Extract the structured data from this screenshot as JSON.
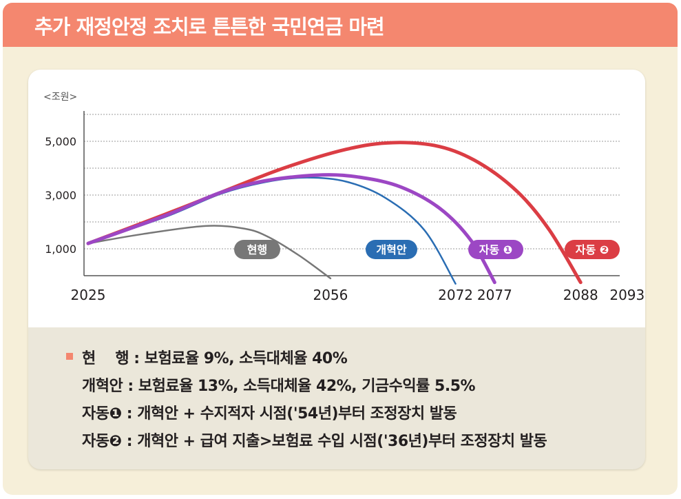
{
  "title": "추가 재정안정 조치로 튼튼한 국민연금 마련",
  "chart_data": {
    "type": "line",
    "unit_label": "<조원>",
    "x_suffix": "년",
    "xlim": [
      2025,
      2093
    ],
    "ylim": [
      0,
      6000
    ],
    "grid": true,
    "y_ticks": [
      1000,
      3000,
      5000
    ],
    "y_tick_labels": [
      "1,000",
      "3,000",
      "5,000"
    ],
    "x_ticks": [
      2025,
      2056,
      2072,
      2077,
      2088,
      2093
    ],
    "x_tick_labels": [
      "2025",
      "2056",
      "2072",
      "2077",
      "2088",
      "2093년"
    ],
    "series": [
      {
        "name": "현행",
        "color": "#777777",
        "points": [
          [
            2025,
            1200
          ],
          [
            2032,
            1550
          ],
          [
            2040,
            1850
          ],
          [
            2045,
            1750
          ],
          [
            2048,
            1450
          ],
          [
            2052,
            750
          ],
          [
            2056,
            -100
          ]
        ]
      },
      {
        "name": "개혁안",
        "color": "#2a6db3",
        "points": [
          [
            2025,
            1200
          ],
          [
            2035,
            2200
          ],
          [
            2042,
            3050
          ],
          [
            2048,
            3500
          ],
          [
            2053,
            3650
          ],
          [
            2058,
            3500
          ],
          [
            2063,
            2900
          ],
          [
            2068,
            1700
          ],
          [
            2072,
            -300
          ]
        ]
      },
      {
        "name": "자동 ❶",
        "color": "#9c47c4",
        "points": [
          [
            2025,
            1200
          ],
          [
            2035,
            2250
          ],
          [
            2042,
            3100
          ],
          [
            2048,
            3550
          ],
          [
            2055,
            3750
          ],
          [
            2060,
            3650
          ],
          [
            2065,
            3300
          ],
          [
            2070,
            2500
          ],
          [
            2074,
            1300
          ],
          [
            2077,
            -250
          ]
        ]
      },
      {
        "name": "자동 ❷",
        "color": "#db3d44",
        "points": [
          [
            2025,
            1200
          ],
          [
            2035,
            2300
          ],
          [
            2042,
            3100
          ],
          [
            2050,
            4000
          ],
          [
            2058,
            4700
          ],
          [
            2064,
            4950
          ],
          [
            2070,
            4800
          ],
          [
            2075,
            4200
          ],
          [
            2080,
            3100
          ],
          [
            2084,
            1700
          ],
          [
            2088,
            -250
          ]
        ]
      }
    ]
  },
  "legend": [
    {
      "key": "현    행",
      "text": ": 보험료율 9%, 소득대체율 40%"
    },
    {
      "key": "개혁안",
      "text": ": 보험료율 13%, 소득대체율 42%, 기금수익률 5.5%"
    },
    {
      "key": "자동❶",
      "text": ": 개혁안 + 수지적자 시점('54년)부터 조정장치 발동"
    },
    {
      "key": "자동❷",
      "text": ": 개혁안 + 급여 지출>보험료 수입 시점('36년)부터 조정장치 발동"
    }
  ],
  "colors": {
    "banner": "#f4876f",
    "background": "#f6efd9",
    "legend_bg": "#ebe7da"
  }
}
